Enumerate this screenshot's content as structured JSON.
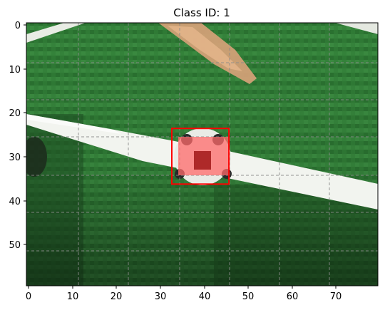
{
  "title": "Class ID: 1",
  "image": {
    "description_hidden": true
  },
  "axes": {
    "x_ticks": [
      "0",
      "10",
      "20",
      "30",
      "40",
      "50",
      "60",
      "70"
    ],
    "y_ticks": [
      "0",
      "10",
      "20",
      "30",
      "40",
      "50"
    ],
    "x_range": [
      -0.5,
      79.5
    ],
    "y_range": [
      -0.5,
      59.5
    ],
    "grid_color": "#8a8a8a"
  },
  "bbox_annotation": {
    "class_id": 1,
    "x_min": 32.6,
    "x_max": 45.6,
    "y_min": 23.6,
    "y_max": 36.3,
    "color": "#ff0000"
  },
  "colors": {
    "grass_dark": "#1f5a22",
    "grass_mid": "#2f7a35",
    "grass_light": "#3f8f45",
    "line_white": "#f2f4ef",
    "ball_red": "#f07070"
  }
}
